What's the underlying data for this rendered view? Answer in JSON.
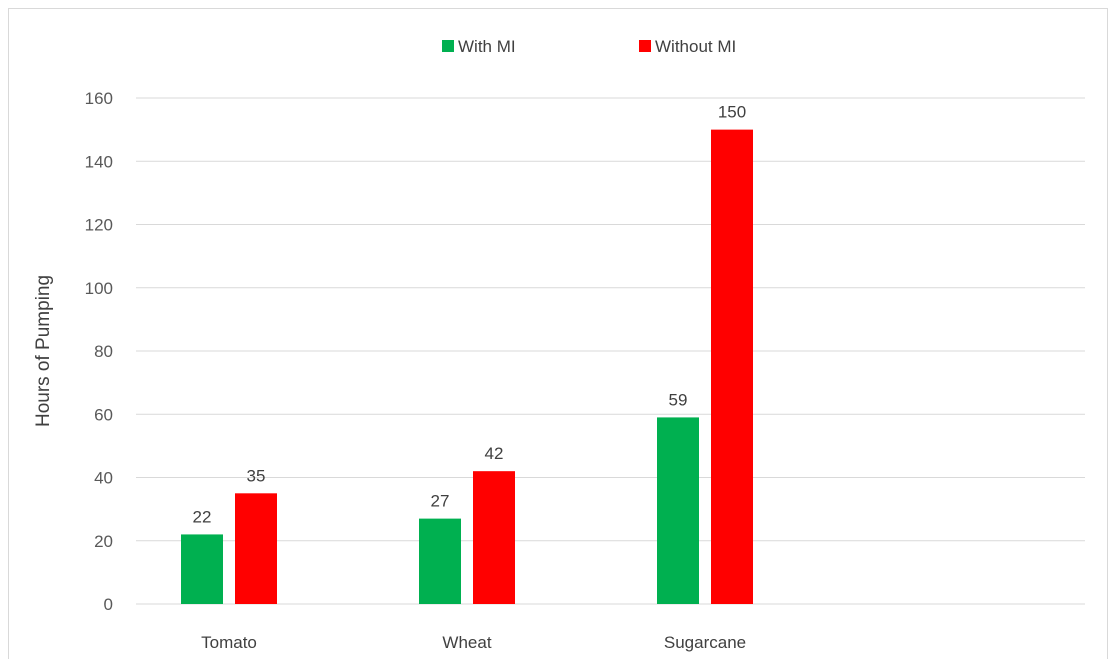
{
  "chart_data": {
    "type": "bar",
    "title": "",
    "xlabel": "",
    "ylabel": "Hours of Pumping",
    "ylim": [
      0,
      160
    ],
    "yticks": [
      0,
      20,
      40,
      60,
      80,
      100,
      120,
      140,
      160
    ],
    "grid": true,
    "legend_position": "top",
    "categories": [
      "Tomato",
      "Wheat",
      "Sugarcane"
    ],
    "series": [
      {
        "name": "With MI",
        "color": "#00b050",
        "values": [
          22,
          27,
          59
        ]
      },
      {
        "name": "Without MI",
        "color": "#ff0000",
        "values": [
          35,
          42,
          150
        ]
      }
    ]
  }
}
